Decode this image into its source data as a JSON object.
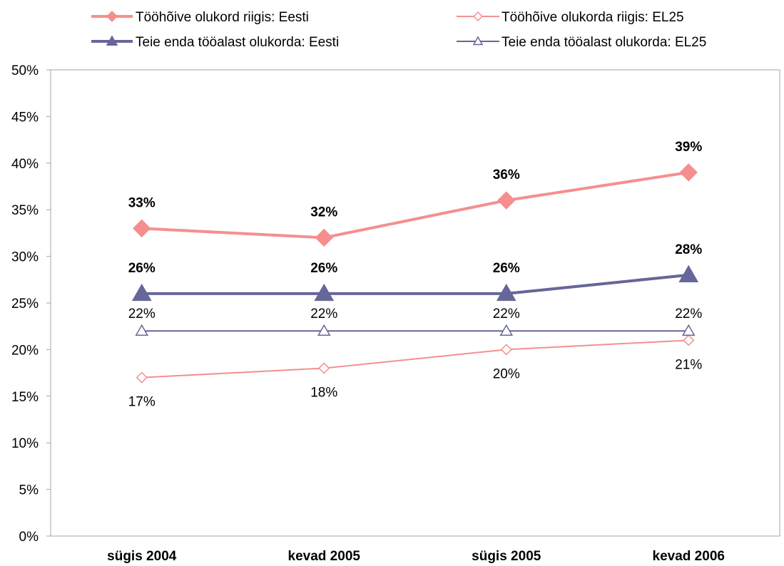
{
  "chart_data": {
    "type": "line",
    "categories": [
      "sügis 2004",
      "kevad 2005",
      "sügis 2005",
      "kevad 2006"
    ],
    "ylim": [
      0,
      50
    ],
    "yticks": [
      "0%",
      "5%",
      "10%",
      "15%",
      "20%",
      "25%",
      "30%",
      "35%",
      "40%",
      "45%",
      "50%"
    ],
    "grid": false,
    "legend_position": "top",
    "series": [
      {
        "name": "Tööhõive olukord riigis: Eesti",
        "values": [
          33,
          32,
          36,
          39
        ],
        "labels": [
          "33%",
          "32%",
          "36%",
          "39%"
        ],
        "color": "#f58f8f",
        "marker": "diamond-filled",
        "label_bold": true,
        "label_position": "above"
      },
      {
        "name": "Tööhõive olukorda riigis: EL25",
        "values": [
          17,
          18,
          20,
          21
        ],
        "labels": [
          "17%",
          "18%",
          "20%",
          "21%"
        ],
        "color": "#f58f8f",
        "marker": "diamond-open",
        "label_bold": false,
        "label_position": "below"
      },
      {
        "name": "Teie enda tööalast olukorda: Eesti",
        "values": [
          26,
          26,
          26,
          28
        ],
        "labels": [
          "26%",
          "26%",
          "26%",
          "28%"
        ],
        "color": "#66669a",
        "marker": "triangle-filled",
        "label_bold": true,
        "label_position": "above"
      },
      {
        "name": "Teie enda tööalast olukorda: EL25",
        "values": [
          22,
          22,
          22,
          22
        ],
        "labels": [
          "22%",
          "22%",
          "22%",
          "22%"
        ],
        "color": "#66669a",
        "marker": "triangle-open",
        "label_bold": false,
        "label_position": "above"
      }
    ]
  }
}
